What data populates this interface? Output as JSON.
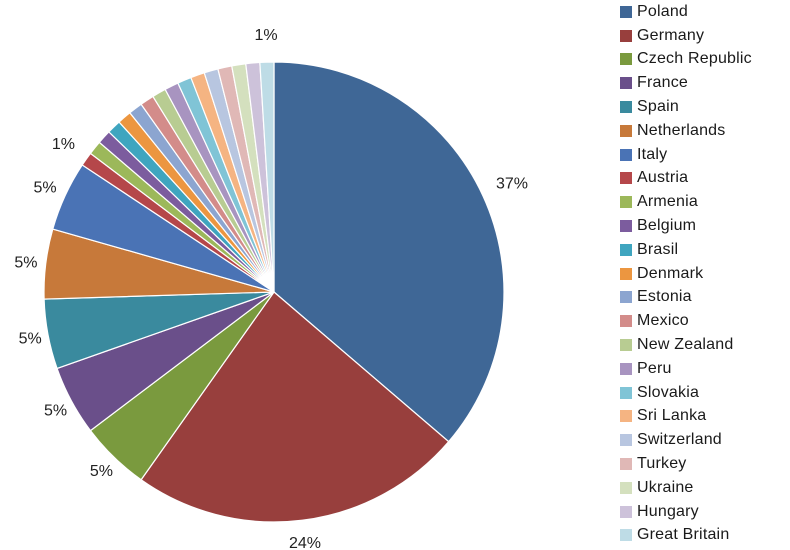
{
  "chart_data": {
    "type": "pie",
    "title": "",
    "legend_position": "right",
    "start_angle_deg": 0,
    "direction": "clockwise",
    "slices": [
      {
        "name": "Poland",
        "value": 37,
        "label": "37%",
        "color": "#3F6796"
      },
      {
        "name": "Germany",
        "value": 24,
        "label": "24%",
        "color": "#983F3D"
      },
      {
        "name": "Czech Republic",
        "value": 5,
        "label": "5%",
        "color": "#7A9A3E"
      },
      {
        "name": "France",
        "value": 5,
        "label": "5%",
        "color": "#6A4F8A"
      },
      {
        "name": "Spain",
        "value": 5,
        "label": "5%",
        "color": "#3A8A9E"
      },
      {
        "name": "Netherlands",
        "value": 5,
        "label": "5%",
        "color": "#C7793A"
      },
      {
        "name": "Italy",
        "value": 5,
        "label": "5%",
        "color": "#4A73B5"
      },
      {
        "name": "Austria",
        "value": 1,
        "label": "1%",
        "color": "#B5474A"
      },
      {
        "name": "Armenia",
        "value": 1,
        "label": "",
        "color": "#9CB85A"
      },
      {
        "name": "Belgium",
        "value": 1,
        "label": "",
        "color": "#7C5C9E"
      },
      {
        "name": "Brasil",
        "value": 1,
        "label": "",
        "color": "#3FA5BF"
      },
      {
        "name": "Denmark",
        "value": 1,
        "label": "",
        "color": "#EC9640"
      },
      {
        "name": "Estonia",
        "value": 1,
        "label": "",
        "color": "#8CA5D0"
      },
      {
        "name": "Mexico",
        "value": 1,
        "label": "",
        "color": "#D38C8A"
      },
      {
        "name": "New Zealand",
        "value": 1,
        "label": "",
        "color": "#B8CC92"
      },
      {
        "name": "Peru",
        "value": 1,
        "label": "",
        "color": "#A894C0"
      },
      {
        "name": "Slovakia",
        "value": 1,
        "label": "",
        "color": "#80C4D6"
      },
      {
        "name": "Sri Lanka",
        "value": 1,
        "label": "",
        "color": "#F5B482"
      },
      {
        "name": "Switzerland",
        "value": 1,
        "label": "",
        "color": "#B8C6E0"
      },
      {
        "name": "Turkey",
        "value": 1,
        "label": "",
        "color": "#E0B8B6"
      },
      {
        "name": "Ukraine",
        "value": 1,
        "label": "",
        "color": "#D4E0BE"
      },
      {
        "name": "Hungary",
        "value": 1,
        "label": "",
        "color": "#CDC2DA"
      },
      {
        "name": "Great Britain",
        "value": 1,
        "label": "1%",
        "color": "#BEDCE6"
      }
    ]
  }
}
